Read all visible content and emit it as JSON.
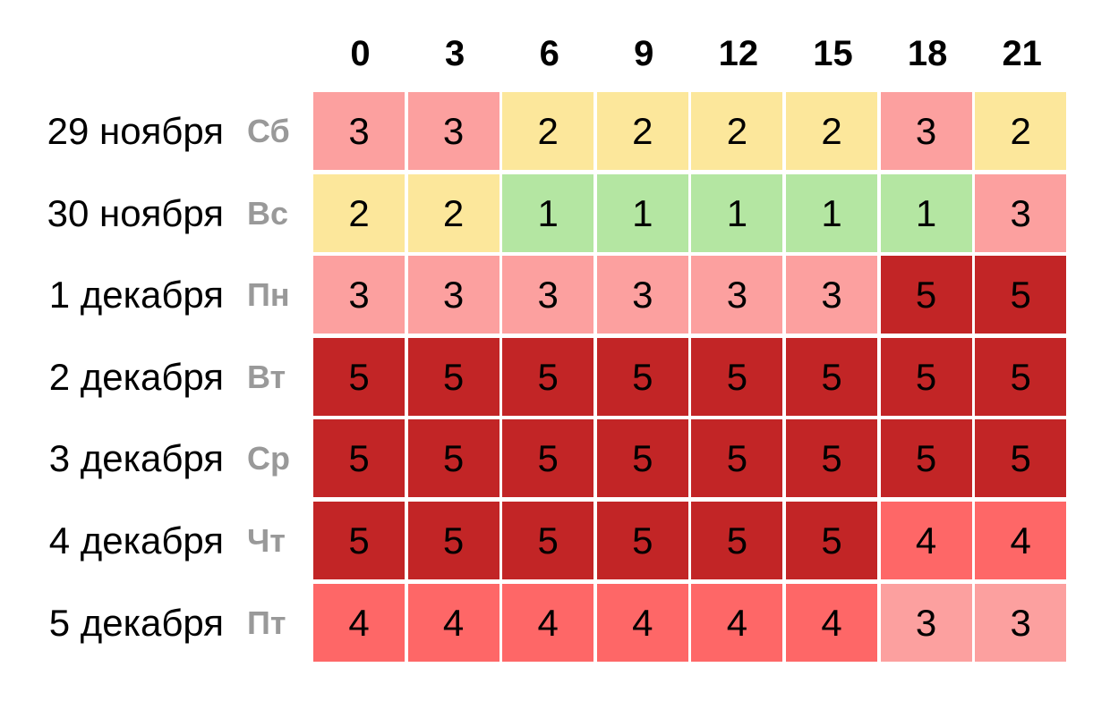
{
  "chart_data": {
    "type": "heatmap",
    "columns": [
      "0",
      "3",
      "6",
      "9",
      "12",
      "15",
      "18",
      "21"
    ],
    "rows": [
      {
        "date": "29 ноября",
        "weekday": "Сб",
        "values": [
          3,
          3,
          2,
          2,
          2,
          2,
          3,
          2
        ]
      },
      {
        "date": "30 ноября",
        "weekday": "Вс",
        "values": [
          2,
          2,
          1,
          1,
          1,
          1,
          1,
          3
        ]
      },
      {
        "date": "1 декабря",
        "weekday": "Пн",
        "values": [
          3,
          3,
          3,
          3,
          3,
          3,
          5,
          5
        ]
      },
      {
        "date": "2 декабря",
        "weekday": "Вт",
        "values": [
          5,
          5,
          5,
          5,
          5,
          5,
          5,
          5
        ]
      },
      {
        "date": "3 декабря",
        "weekday": "Ср",
        "values": [
          5,
          5,
          5,
          5,
          5,
          5,
          5,
          5
        ]
      },
      {
        "date": "4 декабря",
        "weekday": "Чт",
        "values": [
          5,
          5,
          5,
          5,
          5,
          5,
          4,
          4
        ]
      },
      {
        "date": "5 декабря",
        "weekday": "Пт",
        "values": [
          4,
          4,
          4,
          4,
          4,
          4,
          3,
          3
        ]
      }
    ],
    "color_scale": {
      "1": "#b4e6a2",
      "2": "#fce79b",
      "3": "#fca09f",
      "4": "#fe6767",
      "5": "#c22526"
    }
  }
}
